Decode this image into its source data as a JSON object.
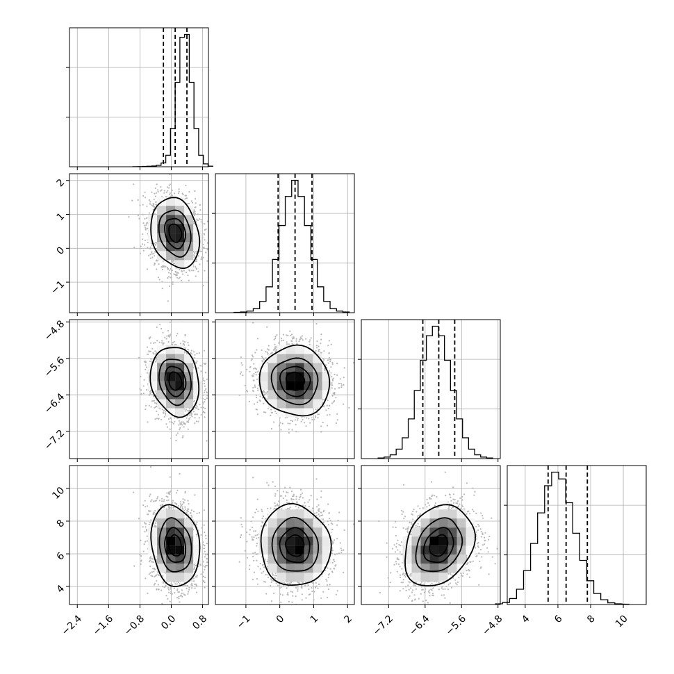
{
  "chart_data": {
    "type": "corner",
    "variables": [
      {
        "range": [
          -2.6,
          0.95
        ],
        "ticks": [
          -2.4,
          -1.6,
          -0.8,
          0.0,
          0.8
        ],
        "tick_labels": [
          "−2.4",
          "−1.6",
          "−0.8",
          "0.0",
          "0.8"
        ],
        "mean": 0.1,
        "sd": 0.3,
        "quantiles": [
          -0.2,
          0.1,
          0.4
        ]
      },
      {
        "range": [
          -1.9,
          2.2
        ],
        "ticks": [
          -1,
          0,
          1,
          2
        ],
        "tick_labels": [
          "−1",
          "0",
          "1",
          "2"
        ],
        "mean": 0.45,
        "sd": 0.5,
        "quantiles": [
          -0.05,
          0.45,
          0.95
        ]
      },
      {
        "range": [
          -7.8,
          -4.75
        ],
        "ticks": [
          -7.2,
          -6.4,
          -5.6,
          -4.8
        ],
        "tick_labels": [
          "−7.2",
          "−6.4",
          "−5.6",
          "−4.8"
        ],
        "mean": -6.1,
        "sd": 0.37,
        "quantiles": [
          -6.45,
          -6.1,
          -5.75
        ]
      },
      {
        "range": [
          2.9,
          11.4
        ],
        "ticks": [
          4,
          6,
          8,
          10
        ],
        "tick_labels": [
          "4",
          "6",
          "8",
          "10"
        ],
        "mean": 6.5,
        "sd": 1.2,
        "quantiles": [
          5.4,
          6.5,
          7.8
        ]
      }
    ],
    "histograms": [
      {
        "variable": 0,
        "counts": [
          1,
          2,
          3,
          5,
          8,
          15,
          40,
          120,
          400,
          880,
          1350,
          1380,
          880,
          400,
          120,
          30,
          6
        ]
      },
      {
        "variable": 1,
        "counts": [
          2,
          4,
          10,
          25,
          70,
          160,
          330,
          540,
          720,
          820,
          720,
          540,
          330,
          160,
          70,
          25,
          10,
          4
        ]
      },
      {
        "variable": 2,
        "counts": [
          3,
          8,
          20,
          50,
          110,
          210,
          360,
          520,
          650,
          700,
          650,
          520,
          360,
          210,
          110,
          50,
          20,
          8,
          3
        ]
      },
      {
        "variable": 3,
        "counts": [
          4,
          12,
          35,
          90,
          200,
          360,
          540,
          700,
          780,
          740,
          600,
          420,
          260,
          140,
          65,
          28,
          10,
          4,
          2
        ]
      }
    ],
    "pairs": [
      {
        "x": 0,
        "y": 1,
        "correlation": -0.2
      },
      {
        "x": 0,
        "y": 2,
        "correlation": -0.15
      },
      {
        "x": 1,
        "y": 2,
        "correlation": -0.05
      },
      {
        "x": 0,
        "y": 3,
        "correlation": -0.15
      },
      {
        "x": 1,
        "y": 3,
        "correlation": -0.05
      },
      {
        "x": 2,
        "y": 3,
        "correlation": 0.25
      }
    ],
    "contour_levels_sigma": [
      0.5,
      1.0,
      1.5,
      2.0
    ],
    "grid": true
  }
}
